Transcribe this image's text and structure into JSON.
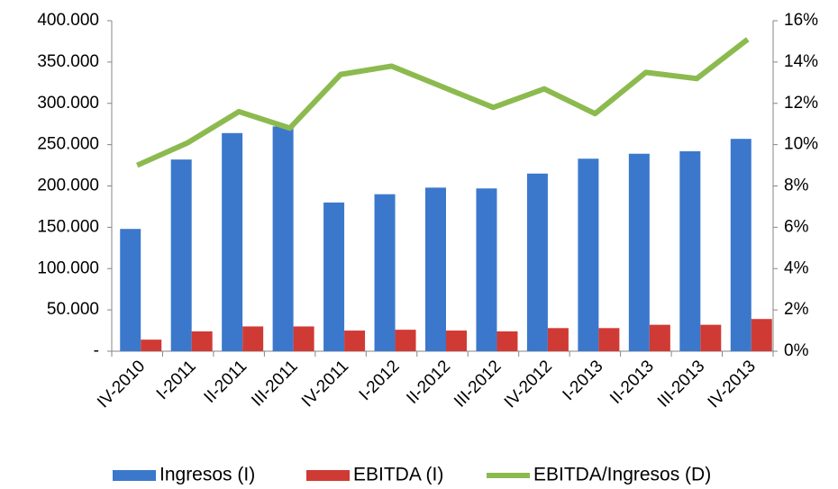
{
  "chart_data": {
    "type": "bar",
    "categories": [
      "IV-2010",
      "I-2011",
      "II-2011",
      "III-2011",
      "IV-2011",
      "I-2012",
      "II-2012",
      "III-2012",
      "IV-2012",
      "I-2013",
      "II-2013",
      "III-2013",
      "IV-2013"
    ],
    "series": [
      {
        "name": "Ingresos (I)",
        "type": "bar",
        "color": "#3b78cc",
        "values": [
          148000,
          232000,
          264000,
          272000,
          180000,
          190000,
          198000,
          197000,
          215000,
          233000,
          239000,
          242000,
          257000
        ]
      },
      {
        "name": "EBITDA (I)",
        "type": "bar",
        "color": "#d03a35",
        "values": [
          14000,
          24000,
          30000,
          30000,
          25000,
          26000,
          25000,
          24000,
          28000,
          28000,
          32000,
          32000,
          39000
        ]
      },
      {
        "name": "EBITDA/Ingresos (D)",
        "type": "line",
        "axis": "y2",
        "color": "#8cba4f",
        "values": [
          9.0,
          10.1,
          11.6,
          10.8,
          13.4,
          13.8,
          12.8,
          11.8,
          12.7,
          11.5,
          13.5,
          13.2,
          15.1
        ]
      }
    ],
    "ylim": [
      0,
      400000
    ],
    "yticks": [
      {
        "value": 0,
        "label": "-"
      },
      {
        "value": 50000,
        "label": "50.000"
      },
      {
        "value": 100000,
        "label": "100.000"
      },
      {
        "value": 150000,
        "label": "150.000"
      },
      {
        "value": 200000,
        "label": "200.000"
      },
      {
        "value": 250000,
        "label": "250.000"
      },
      {
        "value": 300000,
        "label": "300.000"
      },
      {
        "value": 350000,
        "label": "350.000"
      },
      {
        "value": 400000,
        "label": "400.000"
      }
    ],
    "y2lim": [
      0,
      16
    ],
    "y2ticks": [
      {
        "value": 0,
        "label": "0%"
      },
      {
        "value": 2,
        "label": "2%"
      },
      {
        "value": 4,
        "label": "4%"
      },
      {
        "value": 6,
        "label": "6%"
      },
      {
        "value": 8,
        "label": "8%"
      },
      {
        "value": 10,
        "label": "10%"
      },
      {
        "value": 12,
        "label": "12%"
      },
      {
        "value": 14,
        "label": "14%"
      },
      {
        "value": 16,
        "label": "16%"
      }
    ],
    "grid": false,
    "legend": "bottom"
  }
}
